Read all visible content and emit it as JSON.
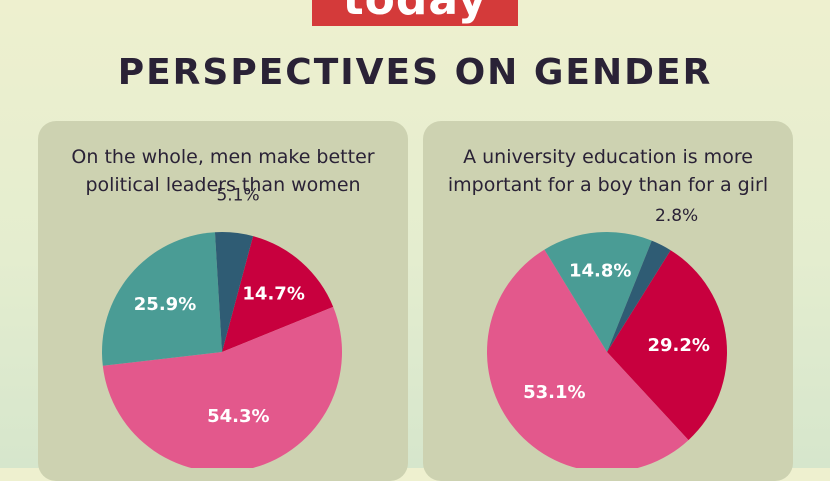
{
  "logo": {
    "text": "today",
    "color": "#d43a3a"
  },
  "title": "PERSPECTIVES ON GENDER",
  "chart_data": [
    {
      "type": "pie",
      "title": "On the whole, men make better political leaders than women",
      "slices": [
        {
          "label": "14.7%",
          "value": 14.7,
          "color": "#c8003e"
        },
        {
          "label": "54.3%",
          "value": 54.3,
          "color": "#e3588c"
        },
        {
          "label": "25.9%",
          "value": 25.9,
          "color": "#4a9c95"
        },
        {
          "label": "5.1%",
          "value": 5.1,
          "color": "#2f5c74"
        }
      ]
    },
    {
      "type": "pie",
      "title": "A university education is more important for a boy than for a girl",
      "slices": [
        {
          "label": "29.2%",
          "value": 29.2,
          "color": "#c8003e"
        },
        {
          "label": "53.1%",
          "value": 53.1,
          "color": "#e3588c"
        },
        {
          "label": "14.8%",
          "value": 14.8,
          "color": "#4a9c95"
        },
        {
          "label": "2.8%",
          "value": 2.8,
          "color": "#2f5c74"
        }
      ]
    }
  ]
}
